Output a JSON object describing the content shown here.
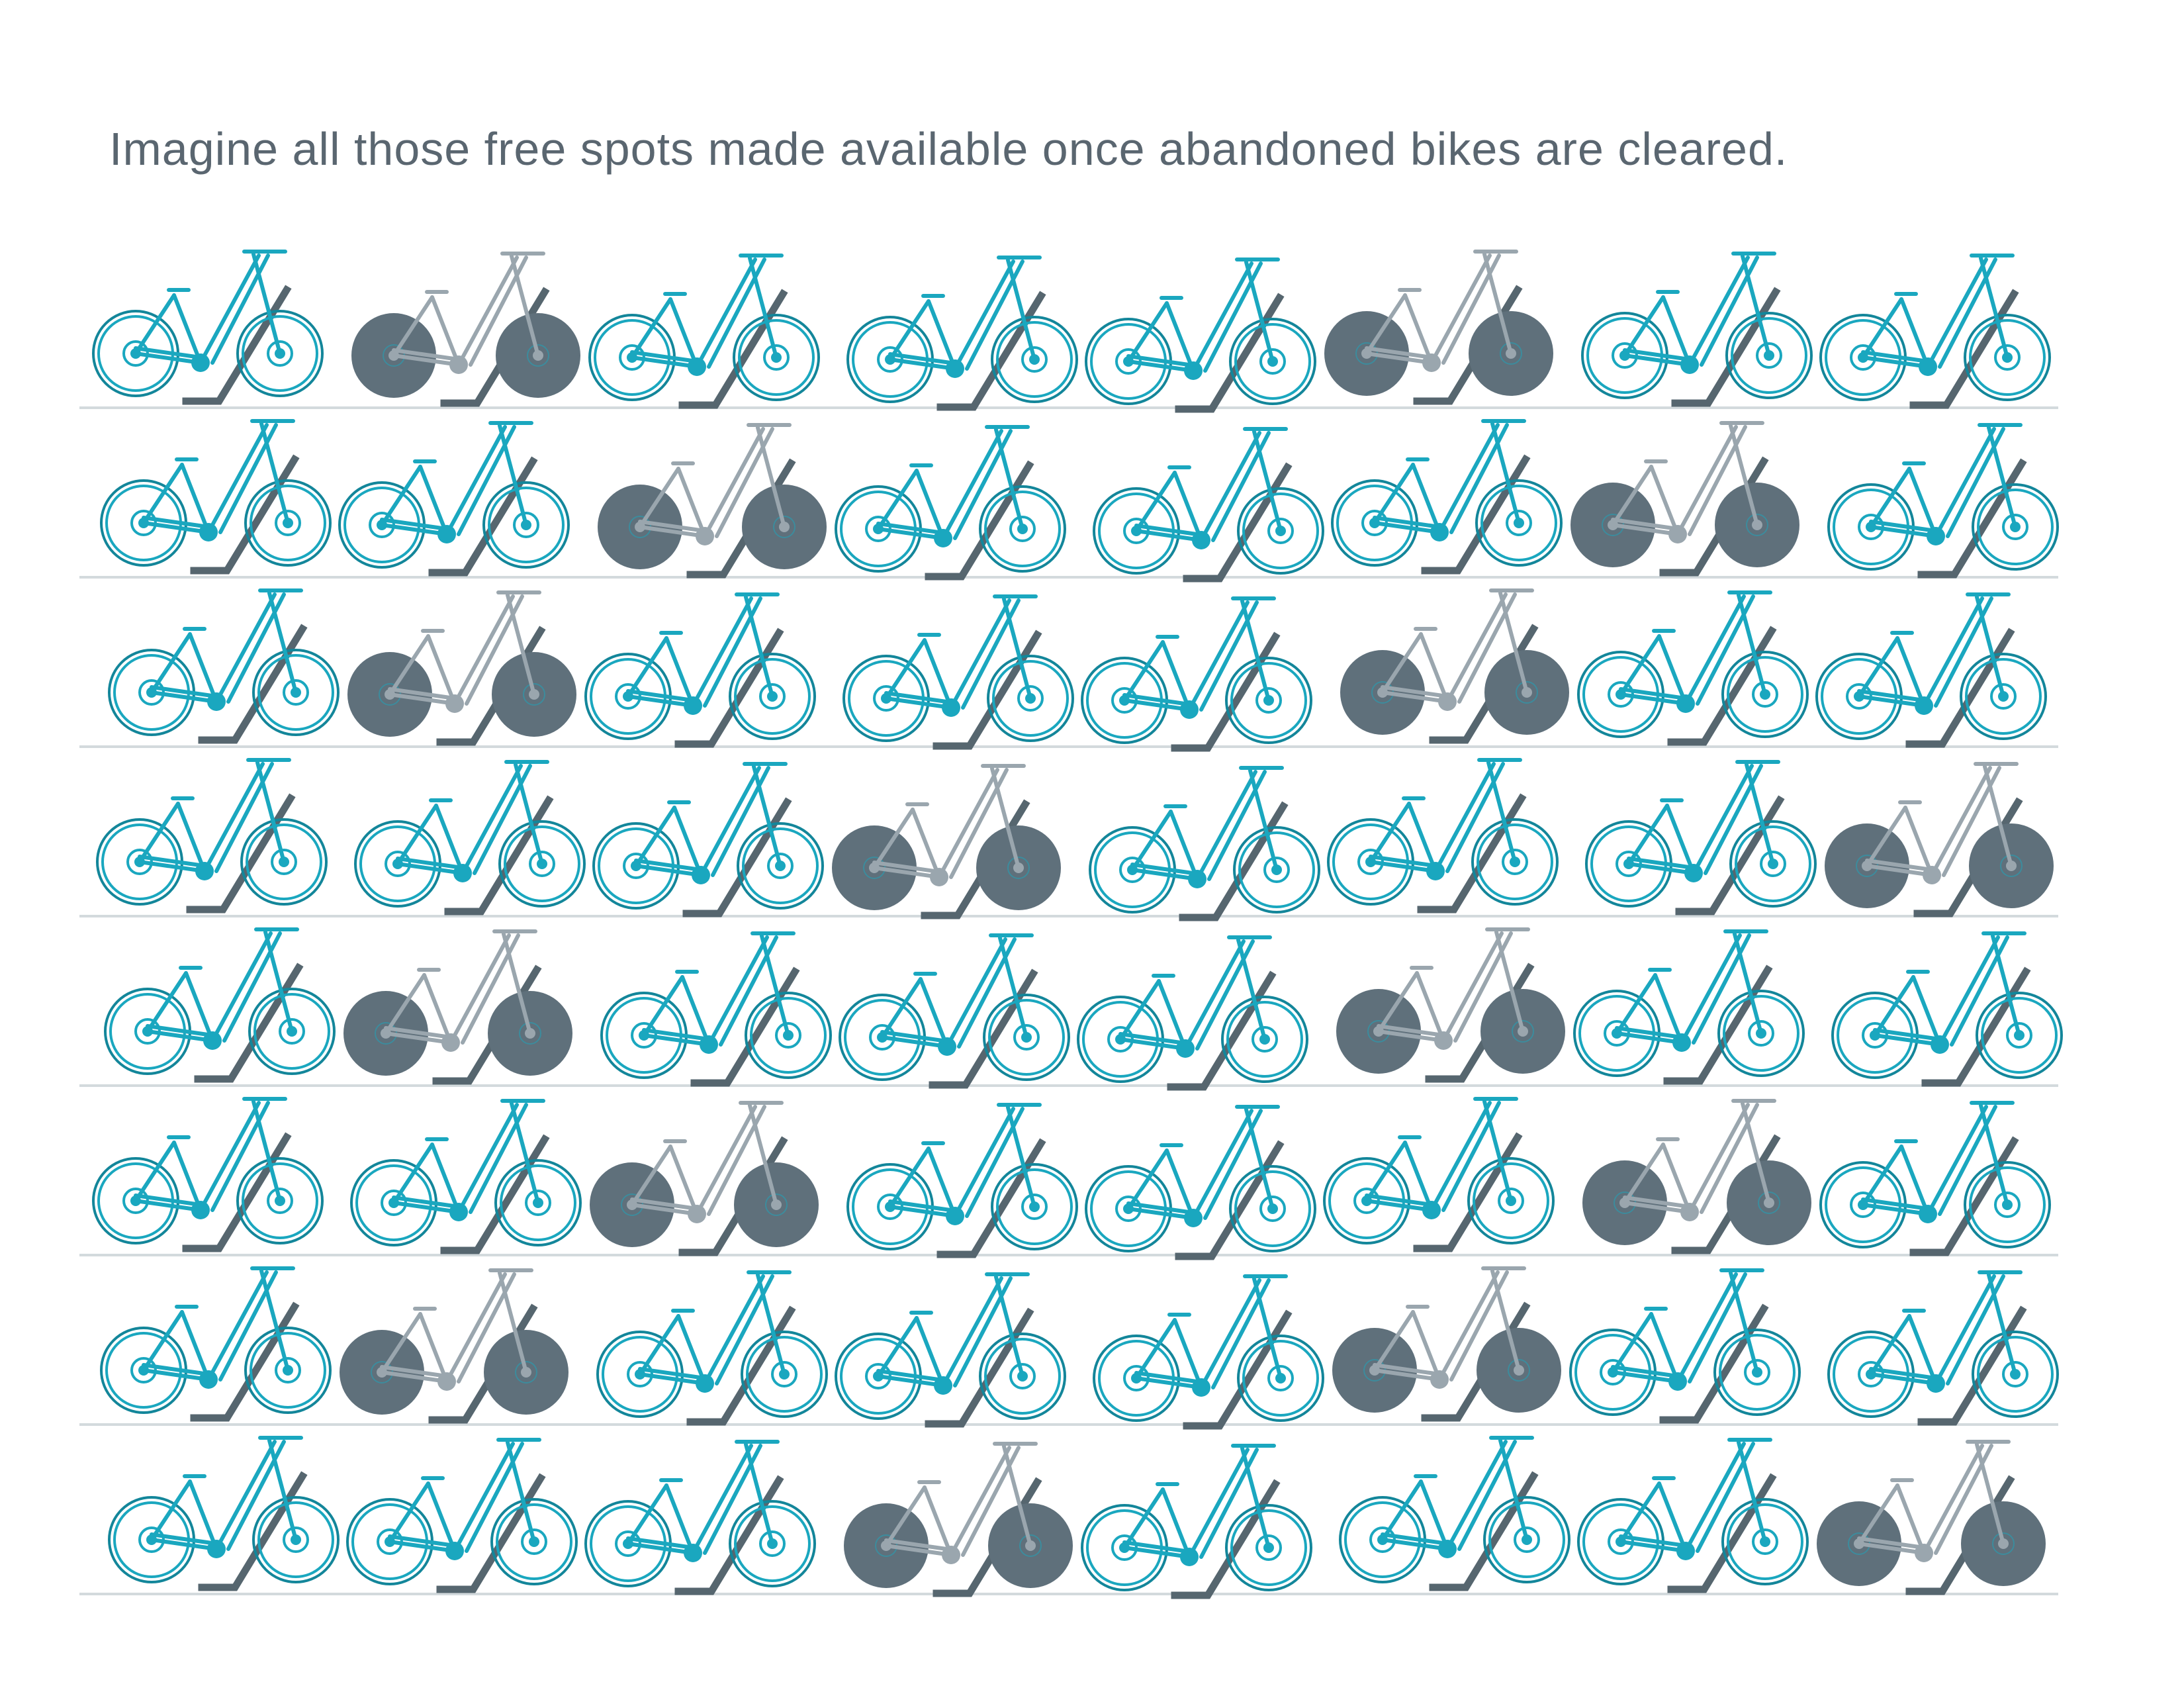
{
  "headline": "Imagine all those free spots made available once abandoned bikes are cleared.",
  "colors": {
    "active_bike": "#1aa7bf",
    "active_bike_dark": "#13869a",
    "abandoned_frame": "#9aa6ae",
    "abandoned_wheel": "#5f707b",
    "rack": "#56666f",
    "ground": "#d3dadd"
  },
  "icon": "bicycle-rack-icon",
  "grid": {
    "rows": 8,
    "columns": 8,
    "abandoned": [
      [
        0,
        1,
        0,
        0,
        0,
        1,
        0,
        0
      ],
      [
        0,
        0,
        1,
        0,
        0,
        0,
        1,
        0
      ],
      [
        0,
        1,
        0,
        0,
        0,
        1,
        0,
        0
      ],
      [
        0,
        0,
        0,
        1,
        0,
        0,
        0,
        1
      ],
      [
        0,
        1,
        0,
        0,
        0,
        1,
        0,
        0
      ],
      [
        0,
        0,
        1,
        0,
        0,
        0,
        1,
        0
      ],
      [
        0,
        1,
        0,
        0,
        0,
        1,
        0,
        0
      ],
      [
        0,
        0,
        0,
        1,
        0,
        0,
        0,
        1
      ]
    ]
  }
}
